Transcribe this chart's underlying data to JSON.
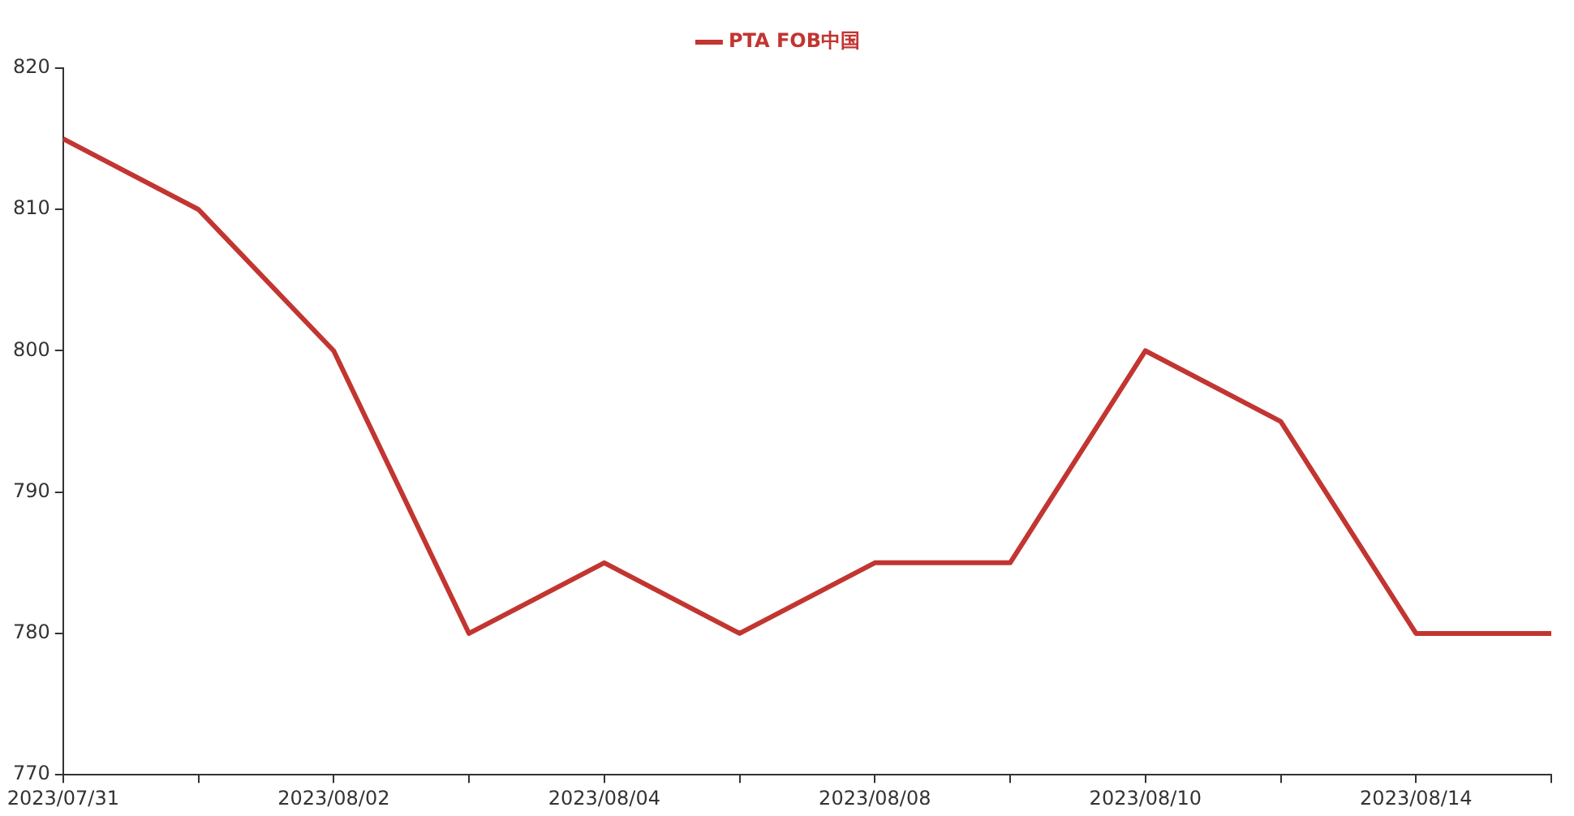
{
  "chart_data": {
    "type": "line",
    "categories": [
      "2023/07/31",
      null,
      "2023/08/02",
      null,
      "2023/08/04",
      null,
      "2023/08/08",
      null,
      "2023/08/10",
      null,
      "2023/08/14",
      null
    ],
    "series": [
      {
        "name": "PTA FOB中国",
        "color": "#c23531",
        "values": [
          815,
          810,
          800,
          780,
          785,
          780,
          785,
          785,
          800,
          795,
          780,
          780
        ]
      }
    ],
    "ylim": [
      770,
      820
    ],
    "yticks": [
      770,
      780,
      790,
      800,
      810,
      820
    ],
    "grid": false,
    "legend": "top",
    "marker": "none",
    "line_style": "solid"
  }
}
